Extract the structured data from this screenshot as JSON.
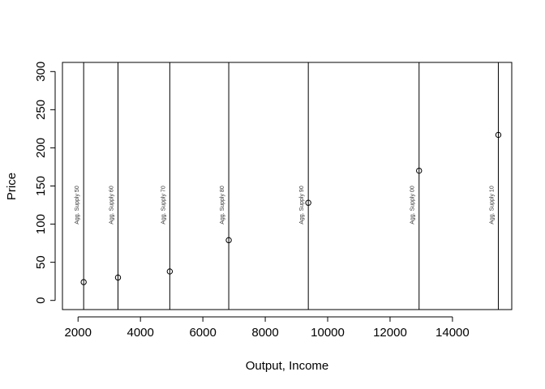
{
  "chart_data": {
    "type": "scatter",
    "title": "",
    "xlabel": "Output, Income",
    "ylabel": "Price",
    "xlim": [
      1500,
      15900
    ],
    "ylim": [
      -12,
      312
    ],
    "xticks": [
      2000,
      4000,
      6000,
      8000,
      10000,
      12000,
      14000
    ],
    "yticks": [
      0,
      50,
      100,
      150,
      200,
      250,
      300
    ],
    "grid": false,
    "points": [
      {
        "x": 2180,
        "y": 24
      },
      {
        "x": 3280,
        "y": 30
      },
      {
        "x": 4940,
        "y": 38
      },
      {
        "x": 6830,
        "y": 79
      },
      {
        "x": 9380,
        "y": 128
      },
      {
        "x": 12930,
        "y": 170
      },
      {
        "x": 15470,
        "y": 217
      }
    ],
    "vlines": [
      {
        "x": 2180,
        "label": "Agg. Supply 50"
      },
      {
        "x": 3280,
        "label": "Agg. Supply 60"
      },
      {
        "x": 4940,
        "label": "Agg. Supply 70"
      },
      {
        "x": 6830,
        "label": "Agg. Supply 80"
      },
      {
        "x": 9380,
        "label": "Agg. Supply 90"
      },
      {
        "x": 12930,
        "label": "Agg. Supply 00"
      },
      {
        "x": 15470,
        "label": "Agg. Supply 10"
      }
    ],
    "vline_label_y": 125
  }
}
